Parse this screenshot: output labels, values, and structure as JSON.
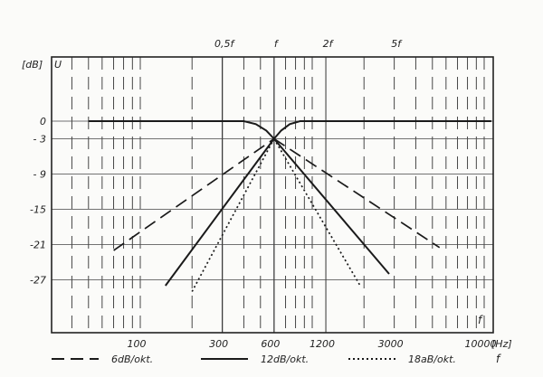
{
  "chart_data": {
    "type": "line",
    "xscale": "log",
    "xlabel_unit": "[Hz]",
    "x_axis_symbol": "f",
    "ylabel_unit": "[dB]",
    "ylabel_symbol": "U",
    "xlim": [
      30,
      11000
    ],
    "ylim": [
      -36,
      11
    ],
    "x_ticks": [
      100,
      300,
      600,
      1200,
      3000,
      10000
    ],
    "x_tick_labels": [
      "100",
      "300",
      "600",
      "1200",
      "3000",
      "10000"
    ],
    "top_ticks": [
      {
        "x": 300,
        "label": "0,5f"
      },
      {
        "x": 600,
        "label": "f"
      },
      {
        "x": 1200,
        "label": "2f"
      },
      {
        "x": 3000,
        "label": "5f"
      }
    ],
    "y_ticks": [
      0,
      -3,
      -9,
      -15,
      -21,
      -27
    ],
    "y_tick_labels": [
      "0",
      "- 3",
      "- 9",
      "-15",
      "-21",
      "-27"
    ],
    "grid": true,
    "legend_placement": "bottom",
    "legend_trailing_symbol": "f",
    "series": [
      {
        "name": "6dB/okt.",
        "style": "dashed",
        "curves": [
          [
            [
              70,
              -22
            ],
            [
              600,
              -3
            ]
          ],
          [
            [
              600,
              -3
            ],
            [
              5500,
              -21.5
            ]
          ]
        ]
      },
      {
        "name": "12dB/okt.",
        "style": "solid",
        "curves": [
          [
            [
              50,
              0
            ],
            [
              400,
              0
            ],
            [
              470,
              -0.5
            ],
            [
              540,
              -1.6
            ],
            [
              600,
              -3
            ]
          ],
          [
            [
              600,
              -3
            ],
            [
              2800,
              -26
            ]
          ],
          [
            [
              140,
              -28
            ],
            [
              600,
              -3
            ]
          ],
          [
            [
              600,
              -3
            ],
            [
              660,
              -1.6
            ],
            [
              740,
              -0.5
            ],
            [
              850,
              0
            ],
            [
              11000,
              0
            ]
          ]
        ]
      },
      {
        "name": "18aB/okt.",
        "style": "dotted",
        "curves": [
          [
            [
              200,
              -29
            ],
            [
              600,
              -3
            ]
          ],
          [
            [
              600,
              -3
            ],
            [
              1900,
              -28
            ]
          ]
        ]
      }
    ]
  }
}
